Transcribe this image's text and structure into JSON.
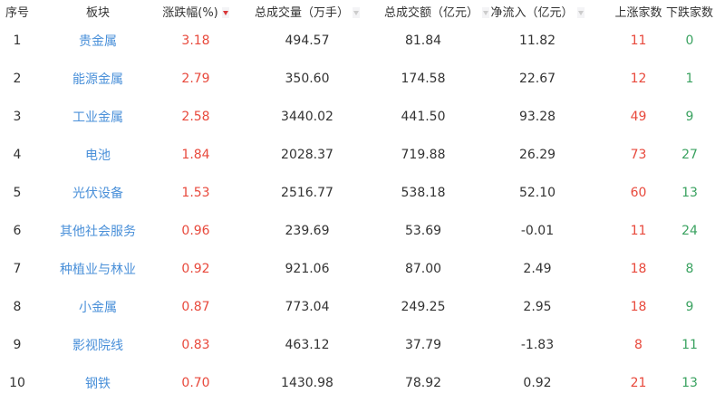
{
  "headers": {
    "index": "序号",
    "sector": "板块",
    "change": "涨跌幅(%)",
    "volume": "总成交量（万手）",
    "amount": "总成交额（亿元）",
    "netflow": "净流入（亿元）",
    "up_count": "上涨家数",
    "down_count": "下跌家数"
  },
  "sort": {
    "column": "change",
    "direction": "desc"
  },
  "colors": {
    "name": "#4a90d9",
    "up": "#e8493c",
    "down": "#3aa260",
    "sort_active": "#d9383a"
  },
  "rows": [
    {
      "index": "1",
      "sector": "贵金属",
      "change": "3.18",
      "volume": "494.57",
      "amount": "81.84",
      "netflow": "11.82",
      "up": "11",
      "down": "0"
    },
    {
      "index": "2",
      "sector": "能源金属",
      "change": "2.79",
      "volume": "350.60",
      "amount": "174.58",
      "netflow": "22.67",
      "up": "12",
      "down": "1"
    },
    {
      "index": "3",
      "sector": "工业金属",
      "change": "2.58",
      "volume": "3440.02",
      "amount": "441.50",
      "netflow": "93.28",
      "up": "49",
      "down": "9"
    },
    {
      "index": "4",
      "sector": "电池",
      "change": "1.84",
      "volume": "2028.37",
      "amount": "719.88",
      "netflow": "26.29",
      "up": "73",
      "down": "27"
    },
    {
      "index": "5",
      "sector": "光伏设备",
      "change": "1.53",
      "volume": "2516.77",
      "amount": "538.18",
      "netflow": "52.10",
      "up": "60",
      "down": "13"
    },
    {
      "index": "6",
      "sector": "其他社会服务",
      "change": "0.96",
      "volume": "239.69",
      "amount": "53.69",
      "netflow": "-0.01",
      "up": "11",
      "down": "24"
    },
    {
      "index": "7",
      "sector": "种植业与林业",
      "change": "0.92",
      "volume": "921.06",
      "amount": "87.00",
      "netflow": "2.49",
      "up": "18",
      "down": "8"
    },
    {
      "index": "8",
      "sector": "小金属",
      "change": "0.87",
      "volume": "773.04",
      "amount": "249.25",
      "netflow": "2.95",
      "up": "18",
      "down": "9"
    },
    {
      "index": "9",
      "sector": "影视院线",
      "change": "0.83",
      "volume": "463.12",
      "amount": "37.79",
      "netflow": "-1.83",
      "up": "8",
      "down": "11"
    },
    {
      "index": "10",
      "sector": "钢铁",
      "change": "0.70",
      "volume": "1430.98",
      "amount": "78.92",
      "netflow": "0.92",
      "up": "21",
      "down": "13"
    }
  ]
}
